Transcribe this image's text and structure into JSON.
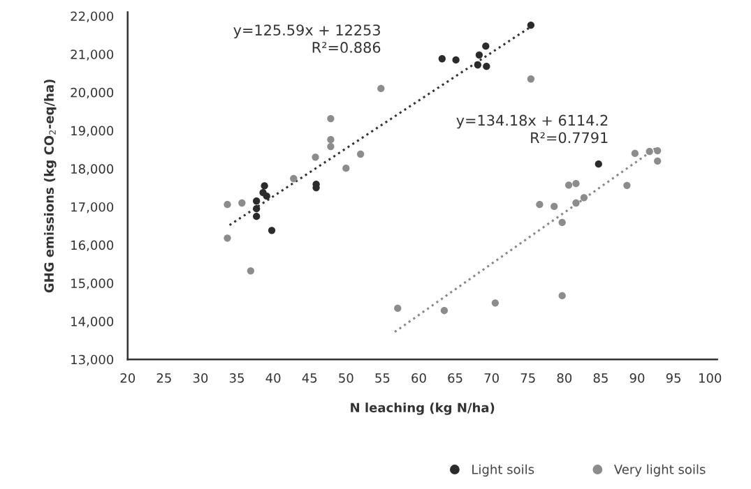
{
  "chart_data": {
    "type": "scatter",
    "xlabel": "N leaching (kg N/ha)",
    "ylabel": "GHG emissions (kg CO$_{2}$-eq/ha)",
    "series": [
      {
        "name": "Light soils",
        "color": "#2b2b2b",
        "x": [
          38.8,
          38.6,
          39.1,
          37.7,
          37.7,
          37.7,
          39.8,
          45.9,
          45.9,
          75.4,
          63.2,
          65.1,
          69.2,
          68.3,
          68.1,
          69.3,
          84.7
        ],
        "values": [
          17550,
          17370,
          17280,
          17150,
          16950,
          16750,
          16380,
          17590,
          17500,
          21760,
          20880,
          20850,
          21210,
          20980,
          20720,
          20680,
          18120
        ]
      },
      {
        "name": "Very light soils",
        "color": "#8c8c8c",
        "x": [
          54.8,
          47.9,
          47.9,
          47.9,
          45.8,
          52.0,
          50.0,
          42.8,
          33.7,
          35.7,
          33.7,
          36.9,
          57.1,
          75.4,
          63.5,
          70.5,
          79.7,
          89.7,
          91.7,
          92.8,
          92.8,
          80.6,
          81.6,
          88.6,
          82.7,
          81.6,
          76.6,
          78.6,
          79.7
        ],
        "values": [
          20100,
          19310,
          18760,
          18580,
          18300,
          18380,
          18010,
          17740,
          17060,
          17100,
          16180,
          15320,
          14340,
          20350,
          14280,
          14480,
          14670,
          18400,
          18450,
          18470,
          18200,
          17570,
          17610,
          17560,
          17240,
          17100,
          17060,
          17010,
          16590
        ]
      },
      {
        "type": "line",
        "color": "#333333",
        "line_style": "dotted",
        "marker": "none",
        "x": [
          34,
          75.4
        ],
        "values": [
          16520,
          21720
        ]
      },
      {
        "type": "line",
        "color": "#888888",
        "line_style": "dotted",
        "marker": "none",
        "x": [
          56.7,
          92.8
        ],
        "values": [
          13720,
          18570
        ]
      }
    ],
    "xlim": [
      20,
      101
    ],
    "ylim": [
      13000,
      22100
    ],
    "xticks": [
      20,
      25,
      30,
      35,
      40,
      45,
      50,
      55,
      60,
      65,
      70,
      75,
      80,
      85,
      90,
      95,
      100
    ],
    "yticks": [
      {
        "value": 13000,
        "label": "13,000"
      },
      {
        "value": 14000,
        "label": "14,000"
      },
      {
        "value": 15000,
        "label": "15,000"
      },
      {
        "value": 16000,
        "label": "16,000"
      },
      {
        "value": 17000,
        "label": "17,000"
      },
      {
        "value": 18000,
        "label": "18,000"
      },
      {
        "value": 19000,
        "label": "19,000"
      },
      {
        "value": 20000,
        "label": "20,000"
      },
      {
        "value": 21000,
        "label": "21,000"
      },
      {
        "value": 22000,
        "label": "22,000"
      }
    ],
    "annotations": [
      "y=125.59x + 12253\nR²=0.886",
      "y=134.18x + 6114.2\nR²=0.7791"
    ],
    "marker": "circle",
    "grid": false,
    "legend": "bottom right"
  }
}
